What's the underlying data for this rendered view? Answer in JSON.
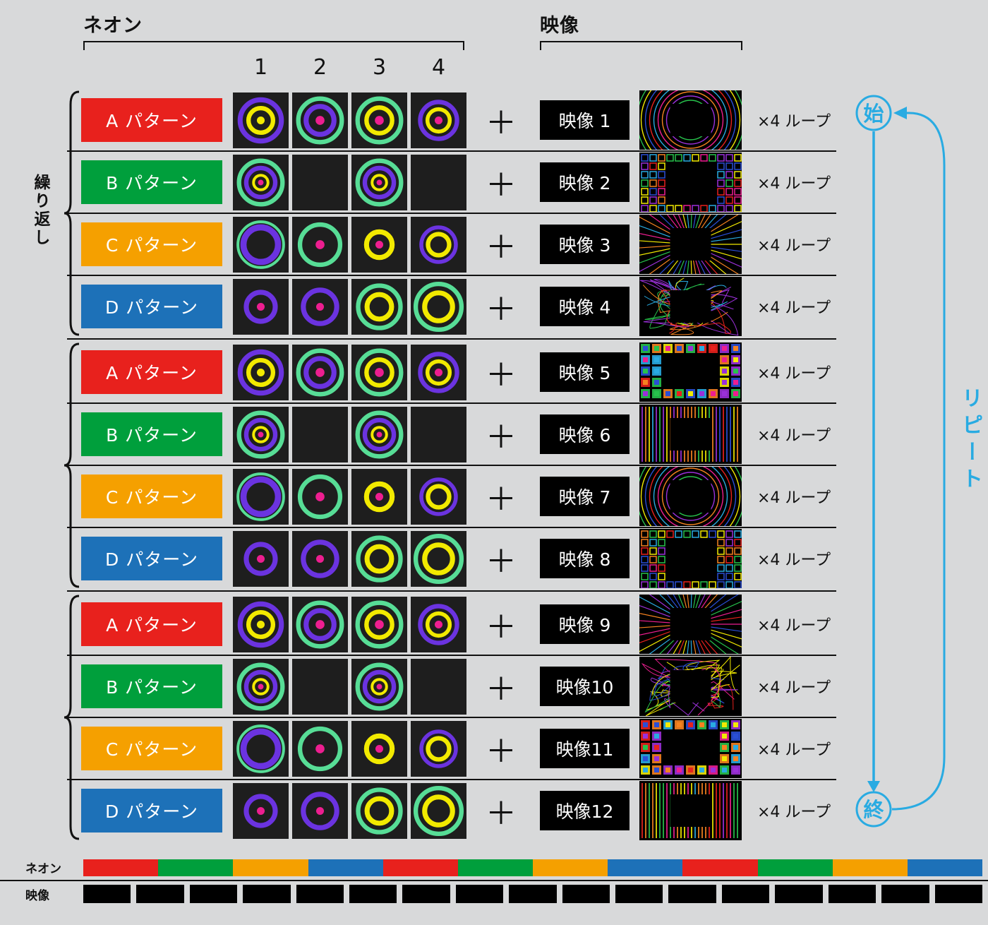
{
  "header": {
    "neon_title": "ネオン",
    "video_title": "映像",
    "column_numbers": [
      "1",
      "2",
      "3",
      "4"
    ]
  },
  "left_label": "繰り返し",
  "plus_sign": "＋",
  "loop_label": "×4 ループ",
  "flow": {
    "start": "始",
    "end": "終",
    "repeat_label": "リピート",
    "color": "#29abe2"
  },
  "neon_palette": {
    "purple": "#6b33e0",
    "yellow": "#f2ea00",
    "green": "#57dd96",
    "magenta": "#ed1e90"
  },
  "pattern_defs": {
    "A": {
      "label": "A パターン",
      "color": "#e8211d",
      "cells": [
        [
          {
            "t": "ring",
            "r": 37,
            "w": 9,
            "c": "purple"
          },
          {
            "t": "ring",
            "r": 22,
            "w": 8,
            "c": "yellow"
          },
          {
            "t": "dot",
            "r": 7,
            "c": "yellow"
          }
        ],
        [
          {
            "t": "ring",
            "r": 39,
            "w": 8,
            "c": "green"
          },
          {
            "t": "ring",
            "r": 25,
            "w": 9,
            "c": "purple"
          },
          {
            "t": "dot",
            "r": 8,
            "c": "magenta"
          }
        ],
        [
          {
            "t": "ring",
            "r": 39,
            "w": 8,
            "c": "green"
          },
          {
            "t": "ring",
            "r": 23,
            "w": 8,
            "c": "yellow"
          },
          {
            "t": "dot",
            "r": 8,
            "c": "magenta"
          }
        ],
        [
          {
            "t": "ring",
            "r": 33,
            "w": 8,
            "c": "purple"
          },
          {
            "t": "ring",
            "r": 20,
            "w": 7,
            "c": "yellow"
          },
          {
            "t": "dot",
            "r": 7,
            "c": "magenta"
          }
        ]
      ]
    },
    "B": {
      "label": "B パターン",
      "color": "#009f3c",
      "cells": [
        [
          {
            "t": "ring",
            "r": 39,
            "w": 8,
            "c": "green"
          },
          {
            "t": "ring",
            "r": 26,
            "w": 8,
            "c": "purple"
          },
          {
            "t": "ring",
            "r": 13,
            "w": 5,
            "c": "yellow"
          },
          {
            "t": "dot",
            "r": 5,
            "c": "magenta"
          }
        ],
        null,
        [
          {
            "t": "ring",
            "r": 39,
            "w": 8,
            "c": "green"
          },
          {
            "t": "ring",
            "r": 26,
            "w": 8,
            "c": "purple"
          },
          {
            "t": "ring",
            "r": 13,
            "w": 5,
            "c": "yellow"
          },
          {
            "t": "dot",
            "r": 5,
            "c": "magenta"
          }
        ],
        null
      ]
    },
    "C": {
      "label": "C パターン",
      "color": "#f5a000",
      "cells": [
        [
          {
            "t": "ring",
            "r": 41,
            "w": 5,
            "c": "green"
          },
          {
            "t": "ring",
            "r": 31,
            "w": 11,
            "c": "purple"
          }
        ],
        [
          {
            "t": "ring",
            "r": 36,
            "w": 8,
            "c": "green"
          },
          {
            "t": "dot",
            "r": 8,
            "c": "magenta"
          }
        ],
        [
          {
            "t": "ring",
            "r": 23,
            "w": 9,
            "c": "yellow"
          },
          {
            "t": "dot",
            "r": 7,
            "c": "magenta"
          }
        ],
        [
          {
            "t": "ring",
            "r": 31,
            "w": 7,
            "c": "purple"
          },
          {
            "t": "ring",
            "r": 19,
            "w": 8,
            "c": "yellow"
          }
        ]
      ]
    },
    "D": {
      "label": "D パターン",
      "color": "#1d71b8",
      "cells": [
        [
          {
            "t": "ring",
            "r": 26,
            "w": 9,
            "c": "purple"
          },
          {
            "t": "dot",
            "r": 7,
            "c": "magenta"
          }
        ],
        [
          {
            "t": "ring",
            "r": 30,
            "w": 9,
            "c": "purple"
          },
          {
            "t": "dot",
            "r": 7,
            "c": "magenta"
          }
        ],
        [
          {
            "t": "ring",
            "r": 38,
            "w": 8,
            "c": "green"
          },
          {
            "t": "ring",
            "r": 22,
            "w": 9,
            "c": "yellow"
          }
        ],
        [
          {
            "t": "ring",
            "r": 41,
            "w": 8,
            "c": "green"
          },
          {
            "t": "ring",
            "r": 25,
            "w": 9,
            "c": "yellow"
          }
        ]
      ]
    }
  },
  "rows": [
    {
      "pattern": "A",
      "video_label": "映像 1",
      "thumb": "arcs"
    },
    {
      "pattern": "B",
      "video_label": "映像 2",
      "thumb": "tiles"
    },
    {
      "pattern": "C",
      "video_label": "映像 3",
      "thumb": "rays"
    },
    {
      "pattern": "D",
      "video_label": "映像 4",
      "thumb": "scribble"
    },
    {
      "pattern": "A",
      "video_label": "映像 5",
      "thumb": "blocks"
    },
    {
      "pattern": "B",
      "video_label": "映像 6",
      "thumb": "bars"
    },
    {
      "pattern": "C",
      "video_label": "映像 7",
      "thumb": "arcs"
    },
    {
      "pattern": "D",
      "video_label": "映像 8",
      "thumb": "tiles"
    },
    {
      "pattern": "A",
      "video_label": "映像 9",
      "thumb": "rays"
    },
    {
      "pattern": "B",
      "video_label": "映像10",
      "thumb": "scribble"
    },
    {
      "pattern": "C",
      "video_label": "映像11",
      "thumb": "blocks"
    },
    {
      "pattern": "D",
      "video_label": "映像12",
      "thumb": "bars"
    }
  ],
  "timeline": {
    "neon_label": "ネオン",
    "video_label": "映像",
    "neon_segments": [
      "A",
      "B",
      "C",
      "D",
      "A",
      "B",
      "C",
      "D",
      "A",
      "B",
      "C",
      "D"
    ],
    "video_block_count": 17
  }
}
